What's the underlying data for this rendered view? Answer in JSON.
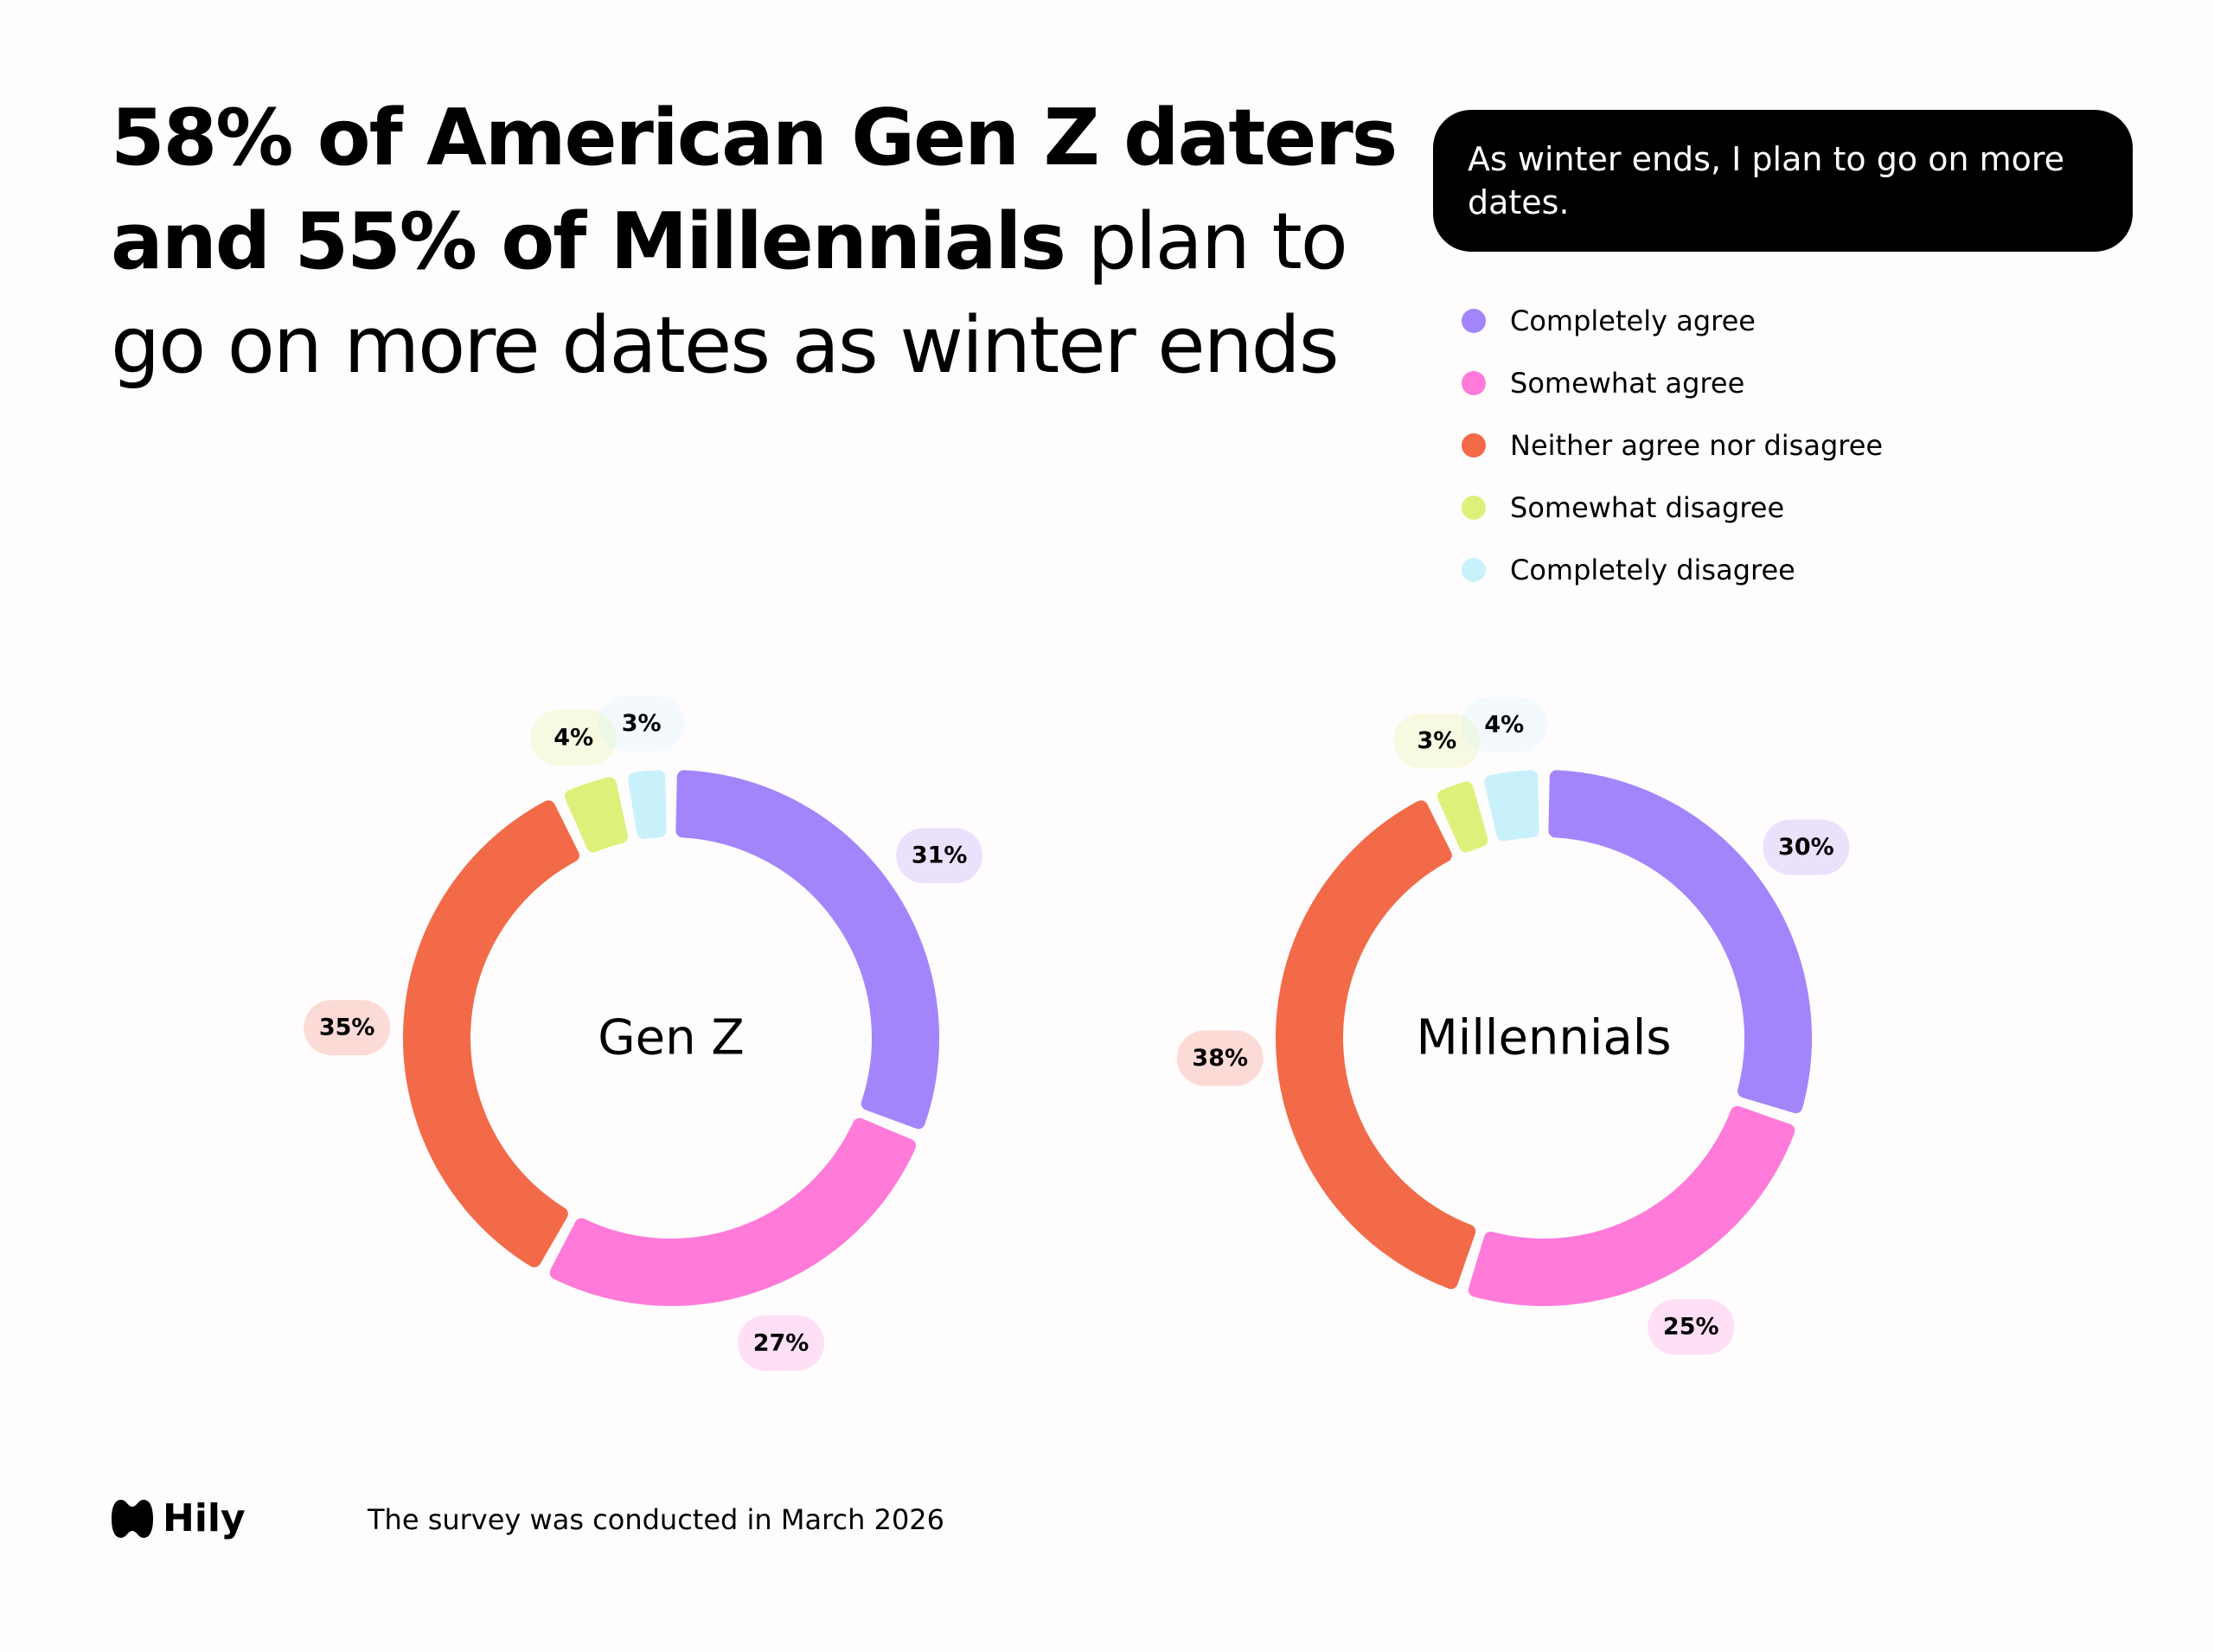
{
  "header": {
    "title_bold": "58% of American Gen Z daters and 55% of Millennials",
    "title_rest": " plan to go on more dates as winter ends",
    "question": "As winter ends, I plan to go on more dates."
  },
  "chart_data": {
    "type": "donut",
    "categories": [
      "Completely agree",
      "Somewhat agree",
      "Neither agree nor disagree",
      "Somewhat disagree",
      "Completely disagree"
    ],
    "colors": [
      "#a385fb",
      "#ff7ad9",
      "#f26a47",
      "#dff07a",
      "#c9f1fb"
    ],
    "series": [
      {
        "name": "Gen Z",
        "values": [
          31,
          27,
          35,
          4,
          3
        ],
        "value_labels": [
          "31%",
          "27%",
          "35%",
          "4%",
          "3%"
        ]
      },
      {
        "name": "Millennials",
        "values": [
          30,
          25,
          38,
          3,
          4
        ],
        "value_labels": [
          "30%",
          "25%",
          "38%",
          "3%",
          "4%"
        ]
      }
    ]
  },
  "footer": {
    "brand": "Hily",
    "note": "The survey was conducted in March 2026"
  }
}
